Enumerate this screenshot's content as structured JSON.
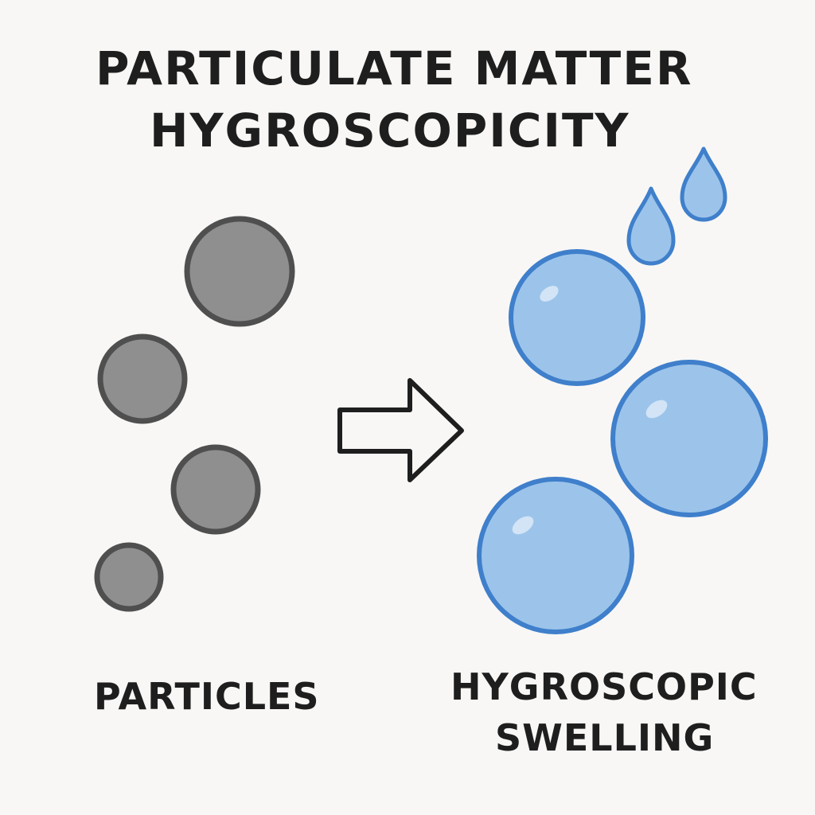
{
  "title": {
    "line1": "PARTICULATE MATTER",
    "line2": "HYGROSCOPICITY"
  },
  "labels": {
    "left": "PARTICLES",
    "right_line1": "HYGROSCOPIC",
    "right_line2": "SWELLING"
  },
  "colors": {
    "background": "#f8f7f5",
    "particle_fill": "#8f8f8f",
    "particle_stroke": "#4f4f4f",
    "droplet_fill": "#9cc4ea",
    "droplet_stroke": "#3f7fcb",
    "arrow_stroke": "#1e1e1e"
  },
  "icons": {
    "arrow": "right-arrow-icon",
    "drop": "water-drop-icon"
  }
}
